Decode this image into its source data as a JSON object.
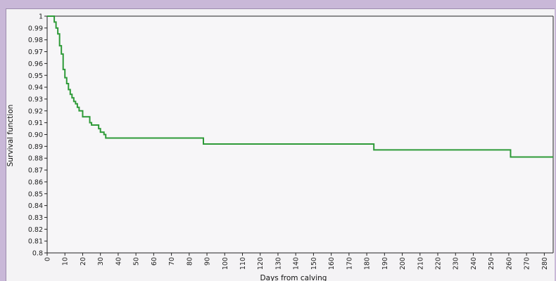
{
  "colors": {
    "background": "#c9b8d8",
    "plot_bg": "#f4f3f5",
    "axis": "#222222",
    "line": "#2e9a38"
  },
  "chart_data": {
    "type": "line",
    "title": "",
    "xlabel": "Days from calving",
    "ylabel": "Survival function",
    "xlim": [
      0,
      285
    ],
    "ylim": [
      0.8,
      1.0
    ],
    "x_ticks": [
      0,
      10,
      20,
      30,
      40,
      50,
      60,
      70,
      80,
      90,
      100,
      110,
      120,
      130,
      140,
      150,
      160,
      170,
      180,
      190,
      200,
      210,
      220,
      230,
      240,
      250,
      260,
      270,
      280
    ],
    "y_ticks": [
      "0.8",
      "0.81",
      "0.82",
      "0.83",
      "0.84",
      "0.85",
      "0.86",
      "0.87",
      "0.88",
      "0.89",
      "0.90",
      "0.91",
      "0.92",
      "0.93",
      "0.94",
      "0.95",
      "0.96",
      "0.97",
      "0.98",
      "0.99",
      "1"
    ],
    "grid": false,
    "step": true,
    "series": [
      {
        "x": [
          0,
          4,
          5,
          6,
          7,
          8,
          9,
          10,
          11,
          12,
          13,
          14,
          15,
          16,
          17,
          18,
          20,
          24,
          25,
          29,
          30,
          32,
          33,
          87,
          88,
          183,
          184,
          260,
          261,
          285
        ],
        "y": [
          1.0,
          0.995,
          0.99,
          0.985,
          0.975,
          0.968,
          0.955,
          0.948,
          0.943,
          0.938,
          0.934,
          0.931,
          0.928,
          0.926,
          0.923,
          0.92,
          0.915,
          0.91,
          0.908,
          0.905,
          0.902,
          0.9,
          0.897,
          0.897,
          0.892,
          0.892,
          0.887,
          0.887,
          0.881,
          0.881
        ]
      }
    ]
  }
}
